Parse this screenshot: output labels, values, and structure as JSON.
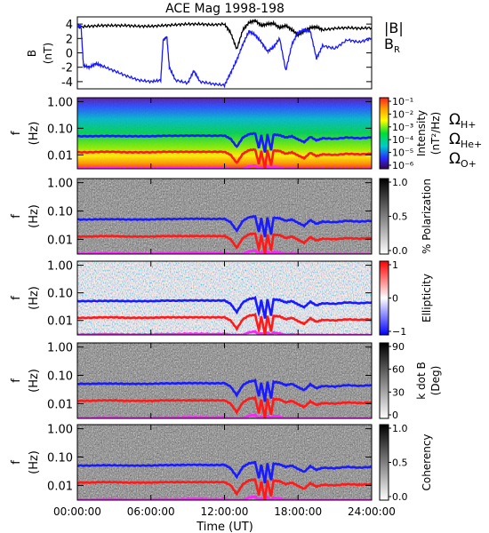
{
  "chart_data": {
    "type": "heatmap",
    "title": "ACE Mag 1998-198",
    "xlabel": "Time (UT)",
    "x_ticks": [
      "00:00:00",
      "06:00:00",
      "12:00:00",
      "18:00:00",
      "24:00:00"
    ],
    "xlim_hours": [
      0,
      24
    ],
    "colors": {
      "blue": "#1a1aff",
      "red": "#ff1a1a",
      "magenta": "#ff22ff",
      "black": "#000000"
    },
    "b_panel": {
      "ylabel": "B",
      "yunit": "(nT)",
      "ylim": [
        -5,
        5
      ],
      "y_ticks": [
        "4",
        "2",
        "0",
        "-2",
        "-4"
      ],
      "legend": {
        "b_label": "|B|",
        "br_label": "B",
        "br_sub": "R"
      },
      "series": [
        {
          "name": "|B|",
          "color": "#000000",
          "x": [
            0,
            1,
            2,
            3,
            4,
            5,
            6,
            7,
            8,
            9,
            10,
            11,
            12,
            12.5,
            13,
            13.5,
            14,
            14.5,
            15,
            15.5,
            16,
            16.5,
            17,
            17.5,
            18,
            18.5,
            19,
            19.5,
            20,
            21,
            22,
            23,
            24
          ],
          "y": [
            3.6,
            3.7,
            3.8,
            3.8,
            3.8,
            3.7,
            3.7,
            3.8,
            3.9,
            4.0,
            4.0,
            3.9,
            4.0,
            2.8,
            0.5,
            3.2,
            4.2,
            4.5,
            3.8,
            4.0,
            4.1,
            3.5,
            3.8,
            3.2,
            2.5,
            3.0,
            3.5,
            3.6,
            3.2,
            3.4,
            3.5,
            3.4,
            3.5
          ]
        },
        {
          "name": "B_R",
          "color": "#1a1aff",
          "x": [
            0,
            0.3,
            0.5,
            1,
            1.5,
            2,
            3,
            4,
            5,
            6,
            6.8,
            7,
            7.3,
            7.5,
            8,
            9,
            9.5,
            10,
            11,
            12,
            12.5,
            13,
            13.5,
            14,
            14.5,
            15,
            15.5,
            16,
            16.5,
            17,
            17.5,
            18,
            18.5,
            19,
            19.5,
            20,
            21,
            22,
            23,
            24
          ],
          "y": [
            3.8,
            3.7,
            -1.8,
            -2.0,
            -1.5,
            -1.8,
            -2.5,
            -3.2,
            -3.8,
            -4.0,
            -3.8,
            1.8,
            2.2,
            -2.0,
            -3.8,
            -4.2,
            -2.5,
            -4.0,
            -4.3,
            -4.5,
            -2.8,
            -1.0,
            1.2,
            3.0,
            2.5,
            1.5,
            0.2,
            0.8,
            2.0,
            -2.5,
            1.2,
            2.8,
            3.2,
            3.0,
            -0.8,
            1.0,
            0.6,
            1.8,
            1.5,
            2.0
          ]
        }
      ]
    },
    "spectrogram_panels": [
      {
        "ylabel": "f",
        "yunit": "(Hz)",
        "y_ticks": [
          "1.00",
          "0.10",
          "0.01"
        ],
        "ylim_hz": [
          0.003,
          1.4
        ],
        "colorbar": {
          "label": "Intensity",
          "unit": "(nT²/Hz)",
          "ticks": [
            "10⁻¹",
            "10⁻²",
            "10⁻³",
            "10⁻⁴",
            "10⁻⁵",
            "10⁻⁶"
          ]
        }
      },
      {
        "ylabel": "f",
        "yunit": "(Hz)",
        "y_ticks": [
          "1.00",
          "0.10",
          "0.01"
        ],
        "ylim_hz": [
          0.003,
          1.4
        ],
        "colorbar": {
          "label": "% Polarization",
          "unit": "",
          "ticks": [
            "1.0",
            "0.5",
            "0.0"
          ]
        }
      },
      {
        "ylabel": "f",
        "yunit": "(Hz)",
        "y_ticks": [
          "1.00",
          "0.10",
          "0.01"
        ],
        "ylim_hz": [
          0.003,
          1.4
        ],
        "colorbar": {
          "label": "Ellipticity",
          "unit": "",
          "ticks": [
            "1",
            "0",
            "−1"
          ]
        }
      },
      {
        "ylabel": "f",
        "yunit": "(Hz)",
        "y_ticks": [
          "1.00",
          "0.10",
          "0.01"
        ],
        "ylim_hz": [
          0.003,
          1.4
        ],
        "colorbar": {
          "label": "k dot B",
          "unit": "(Deg)",
          "ticks": [
            "90",
            "60",
            "30",
            "0"
          ]
        }
      },
      {
        "ylabel": "f",
        "yunit": "(Hz)",
        "y_ticks": [
          "1.00",
          "0.10",
          "0.01"
        ],
        "ylim_hz": [
          0.003,
          1.4
        ],
        "colorbar": {
          "label": "Coherency",
          "unit": "",
          "ticks": [
            "1.0",
            "0.5",
            "0.0"
          ]
        }
      }
    ],
    "gyrofrequency_legend": [
      {
        "label": "Ω",
        "sub": "H+",
        "color": "#1a1aff"
      },
      {
        "label": "Ω",
        "sub": "He+",
        "color": "#ff1a1a"
      },
      {
        "label": "Ω",
        "sub": "O+",
        "color": "#ff22ff"
      }
    ],
    "gyrofrequency_lines": {
      "x": [
        0,
        1,
        2,
        3,
        4,
        5,
        6,
        7,
        8,
        9,
        10,
        11,
        12,
        12.5,
        13,
        13.5,
        14,
        14.5,
        14.8,
        15,
        15.3,
        15.5,
        15.8,
        16,
        16.5,
        17,
        17.5,
        18,
        18.5,
        19,
        19.5,
        20,
        21,
        22,
        23,
        24
      ],
      "H+": [
        0.05,
        0.05,
        0.051,
        0.051,
        0.05,
        0.05,
        0.05,
        0.052,
        0.052,
        0.053,
        0.053,
        0.052,
        0.053,
        0.04,
        0.02,
        0.045,
        0.06,
        0.065,
        0.018,
        0.055,
        0.012,
        0.06,
        0.015,
        0.058,
        0.055,
        0.045,
        0.05,
        0.038,
        0.03,
        0.048,
        0.035,
        0.042,
        0.04,
        0.045,
        0.042,
        0.045
      ],
      "He+": [
        0.0125,
        0.0125,
        0.013,
        0.013,
        0.0125,
        0.0125,
        0.0125,
        0.013,
        0.013,
        0.013,
        0.013,
        0.013,
        0.013,
        0.01,
        0.005,
        0.011,
        0.015,
        0.016,
        0.0045,
        0.014,
        0.003,
        0.015,
        0.004,
        0.0145,
        0.014,
        0.011,
        0.0125,
        0.0095,
        0.0075,
        0.012,
        0.009,
        0.0105,
        0.01,
        0.011,
        0.0105,
        0.011
      ],
      "O+": [
        0.0031,
        0.0031,
        0.0032,
        0.0032,
        0.0031,
        0.0031,
        0.0031,
        0.0032,
        0.0032,
        0.0033,
        0.0033,
        0.0032,
        0.0033,
        0.003,
        0.003,
        0.003,
        0.0037,
        0.004,
        0.003,
        0.0034,
        0.003,
        0.0037,
        0.003,
        0.0036,
        0.0034,
        0.003,
        0.0031,
        0.003,
        0.003,
        0.003,
        0.003,
        0.003,
        0.003,
        0.003,
        0.003,
        0.003
      ]
    }
  }
}
